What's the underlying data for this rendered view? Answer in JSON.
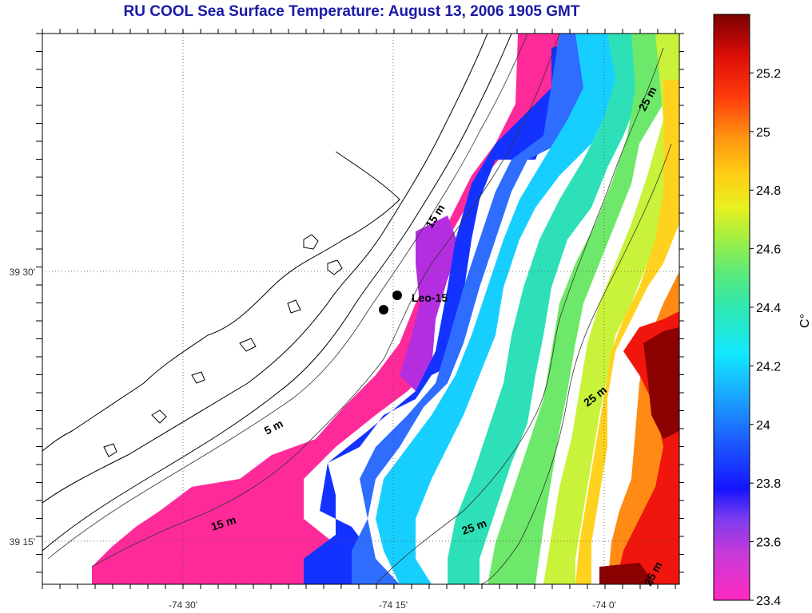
{
  "title": "RU COOL  Sea Surface Temperature:  August 13, 2006 1905 GMT",
  "x_ticks": [
    "-74 30'",
    "-74 15'",
    "-74 0'"
  ],
  "y_ticks": [
    "39 30'",
    "39 15'"
  ],
  "colorbar": {
    "unit": "C°",
    "ticks": [
      "25.2",
      "25",
      "24.8",
      "24.6",
      "24.4",
      "24.2",
      "24",
      "23.8",
      "23.6",
      "23.4"
    ],
    "range": [
      23.4,
      25.4
    ]
  },
  "station": {
    "name": "Leo-15"
  },
  "contours": [
    "5 m",
    "15 m",
    "15 m",
    "25 m",
    "25 m",
    "25 m",
    "25 m"
  ],
  "colors": {
    "magenta": "#ff2a9a",
    "purple": "#b42ee0",
    "blue": "#1432ff",
    "mid_blue": "#2f6dff",
    "cyan": "#17cfff",
    "teal": "#2ee0b8",
    "green": "#6ee86a",
    "yellow_green": "#c9f23a",
    "yellow": "#ffd21f",
    "orange": "#ff8a14",
    "red": "#f0160e",
    "dark_red": "#8b0000",
    "title": "#1a1aa6"
  }
}
